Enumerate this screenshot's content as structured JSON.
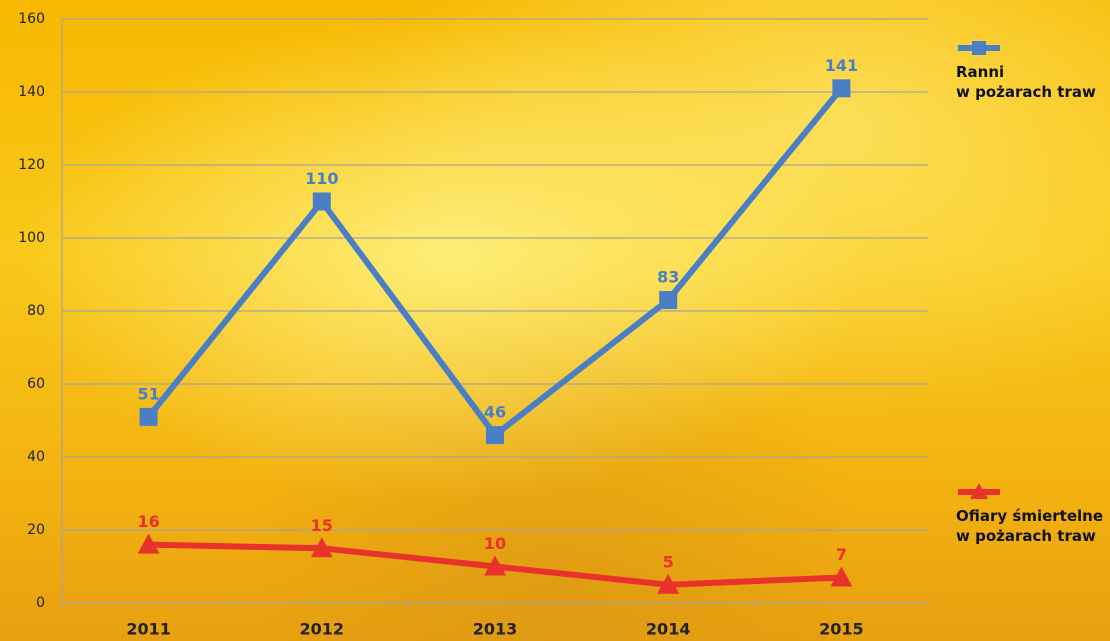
{
  "chart_data": {
    "type": "line",
    "categories": [
      "2011",
      "2012",
      "2013",
      "2014",
      "2015"
    ],
    "series": [
      {
        "name": "Ranni\nw pożarach traw",
        "color": "#4a7fc6",
        "marker": "square",
        "values": [
          51,
          110,
          46,
          83,
          141
        ]
      },
      {
        "name": "Ofiary śmiertelne\nw pożarach traw",
        "color": "#e8322b",
        "marker": "triangle",
        "values": [
          16,
          15,
          10,
          5,
          7
        ]
      }
    ],
    "ylim": [
      0,
      160
    ],
    "yticks": [
      0,
      20,
      40,
      60,
      80,
      100,
      120,
      140,
      160
    ],
    "grid": true,
    "legend": "right"
  }
}
